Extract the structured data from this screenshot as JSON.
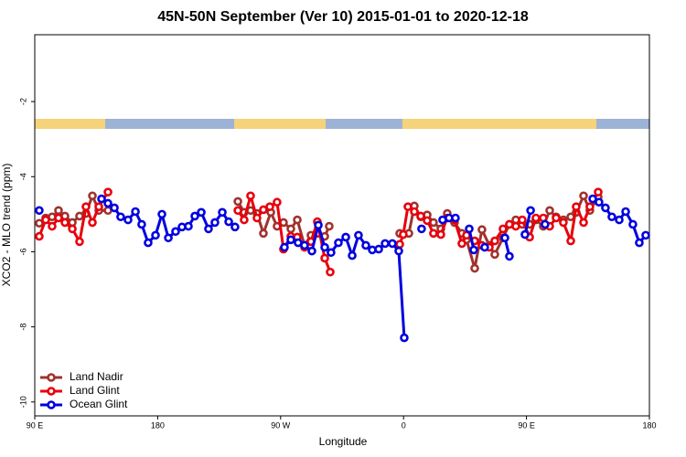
{
  "chart_data": {
    "type": "line",
    "title": "45N-50N September (Ver 10)   2015-01-01 to 2020-12-18",
    "x_label": "Longitude",
    "y_label": "XCO2 - MLO trend (ppm)",
    "xlim": [
      90,
      540
    ],
    "ylim": [
      -10.37,
      -0.22
    ],
    "xticks": [
      {
        "value": 90,
        "label": "90 E"
      },
      {
        "value": 180,
        "label": "180"
      },
      {
        "value": 270,
        "label": "90 W"
      },
      {
        "value": 360,
        "label": "0"
      },
      {
        "value": 450,
        "label": "90 E"
      },
      {
        "value": 540,
        "label": "180"
      }
    ],
    "yticks": [
      -10,
      -8,
      -6,
      -4,
      -2
    ],
    "legend": "bottom-left",
    "series": [
      {
        "name": "Land Nadir",
        "color": "#a0322d",
        "x": [
          93.3,
          98.0,
          102.7,
          107.4,
          112.1,
          117.5,
          122.8,
          127.5,
          132.2,
          136.9,
          143.6,
          null,
          238.7,
          243.3,
          248.0,
          252.7,
          257.4,
          262.8,
          267.4,
          272.1,
          277.5,
          282.2,
          287.5,
          292.2,
          296.9,
          302.3,
          305.6,
          null,
          357.2,
          363.9,
          367.9,
          372.6,
          377.3,
          381.9,
          387.3,
          392.0,
          397.3,
          402.7,
          406.1,
          412.1,
          417.4,
          422.8,
          426.8,
          432.8,
          437.5,
          442.2,
          446.9,
          452.3,
          456.9,
          462.3,
          467.0,
          471.7,
          477.0,
          482.4,
          486.4,
          491.8,
          496.4,
          502.5
        ],
        "values": [
          -5.24,
          -5.1,
          -5.07,
          -4.9,
          -5.05,
          -5.22,
          -5.05,
          -4.98,
          -4.51,
          -4.9,
          -4.9,
          null,
          -4.66,
          -4.95,
          -4.9,
          -4.98,
          -5.51,
          -4.95,
          -5.32,
          -5.22,
          -5.39,
          -5.15,
          -5.83,
          -5.56,
          -5.51,
          -5.59,
          -5.32,
          null,
          -5.51,
          -5.51,
          -4.78,
          -5.07,
          -5.02,
          -5.22,
          -5.39,
          -4.98,
          -5.22,
          -5.51,
          -5.68,
          -6.44,
          -5.41,
          -5.83,
          -6.07,
          -5.63,
          -5.27,
          -5.15,
          -5.27,
          -5.27,
          -5.15,
          -5.32,
          -4.9,
          -5.07,
          -5.15,
          -5.07,
          -4.95,
          -4.51,
          -4.9,
          -4.54
        ]
      },
      {
        "name": "Land Glint",
        "color": "#e8000b",
        "x": [
          93.3,
          98.0,
          102.7,
          107.4,
          112.1,
          117.5,
          122.8,
          127.5,
          132.2,
          136.9,
          143.6,
          null,
          238.7,
          243.3,
          248.0,
          252.7,
          257.4,
          262.1,
          267.4,
          272.1,
          277.5,
          282.2,
          287.5,
          292.2,
          296.9,
          302.3,
          306.3,
          null,
          357.2,
          359.8,
          363.2,
          367.9,
          372.6,
          377.3,
          381.9,
          387.3,
          392.0,
          397.3,
          402.7,
          406.1,
          412.1,
          417.4,
          422.8,
          426.8,
          432.8,
          437.5,
          442.2,
          446.9,
          452.3,
          456.9,
          462.3,
          467.0,
          471.7,
          477.0,
          482.4,
          486.4,
          491.8,
          496.4,
          502.5
        ],
        "values": [
          -5.59,
          -5.15,
          -5.32,
          -5.1,
          -5.22,
          -5.39,
          -5.73,
          -4.8,
          -5.22,
          -4.8,
          -4.41,
          null,
          -4.9,
          -5.15,
          -4.51,
          -5.1,
          -4.88,
          -4.8,
          -4.68,
          -5.93,
          -5.59,
          -5.61,
          -5.88,
          -5.73,
          -5.2,
          -6.17,
          -6.54,
          null,
          -5.8,
          -5.54,
          -4.8,
          -4.93,
          -5.05,
          -5.17,
          -5.51,
          -5.54,
          -5.1,
          -5.15,
          -5.78,
          -5.56,
          -5.71,
          -5.83,
          -5.88,
          -5.71,
          -5.39,
          -5.27,
          -5.32,
          -5.15,
          -5.61,
          -5.1,
          -5.1,
          -5.32,
          -5.1,
          -5.22,
          -5.71,
          -4.8,
          -5.22,
          -4.8,
          -4.41
        ]
      },
      {
        "name": "Ocean Glint",
        "color": "#0000e0",
        "x": [
          93.3,
          null,
          138.9,
          143.6,
          148.3,
          152.9,
          158.3,
          163.7,
          168.3,
          173.0,
          178.4,
          183.1,
          187.8,
          193.1,
          197.8,
          202.5,
          207.2,
          211.9,
          217.2,
          221.9,
          227.3,
          232.0,
          236.6,
          null,
          272.8,
          277.5,
          282.8,
          287.5,
          292.9,
          297.6,
          302.3,
          306.9,
          312.3,
          317.7,
          322.4,
          327.0,
          332.4,
          337.1,
          341.8,
          346.5,
          351.8,
          356.5,
          360.5,
          null,
          373.2,
          null,
          388.6,
          393.3,
          398.0,
          null,
          408.1,
          411.4,
          null,
          419.4,
          null,
          434.2,
          437.5,
          null,
          448.9,
          453.0,
          null,
          463.6,
          null,
          498.5,
          503.1,
          507.8,
          512.5,
          517.9,
          522.6,
          527.9,
          532.6,
          537.3
        ],
        "values": [
          -4.9,
          null,
          -4.59,
          -4.71,
          -4.83,
          -5.07,
          -5.15,
          -4.93,
          -5.27,
          -5.76,
          -5.56,
          -5.0,
          -5.63,
          -5.46,
          -5.34,
          -5.32,
          -5.05,
          -4.95,
          -5.39,
          -5.22,
          -4.95,
          -5.2,
          -5.34,
          null,
          -5.88,
          -5.68,
          -5.76,
          -5.83,
          -5.98,
          -5.29,
          -5.88,
          -6.02,
          -5.76,
          -5.61,
          -6.1,
          -5.56,
          -5.83,
          -5.95,
          -5.93,
          -5.78,
          -5.78,
          -5.98,
          -8.29,
          null,
          -5.39,
          null,
          -5.15,
          -5.1,
          -5.1,
          null,
          -5.39,
          -5.95,
          null,
          -5.88,
          null,
          -5.63,
          -6.12,
          null,
          -5.54,
          -4.9,
          null,
          -5.27,
          null,
          -4.59,
          -4.68,
          -4.83,
          -5.07,
          -5.15,
          -4.93,
          -5.27,
          -5.76,
          -5.56
        ]
      }
    ]
  }
}
